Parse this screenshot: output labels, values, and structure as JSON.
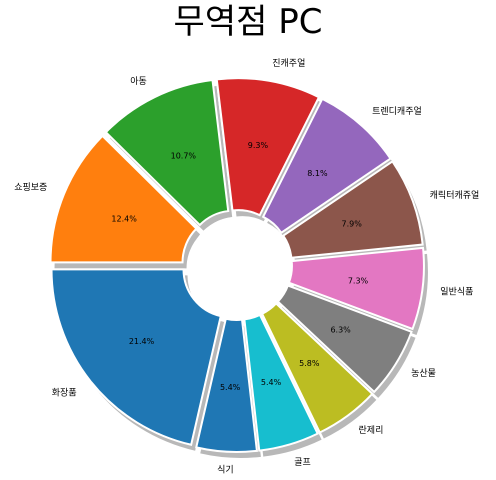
{
  "chart_data": {
    "type": "pie",
    "title": "무역점 PC",
    "donut": true,
    "exploded": true,
    "shadow": true,
    "start_angle_deg": 180,
    "direction": "counterclockwise",
    "slices": [
      {
        "label": "화장품",
        "value": 21.4,
        "pct_label": "21.4%",
        "color": "#1f77b4"
      },
      {
        "label": "식기",
        "value": 5.4,
        "pct_label": "5.4%",
        "color": "#1f77b4"
      },
      {
        "label": "골프",
        "value": 5.4,
        "pct_label": "5.4%",
        "color": "#17becf"
      },
      {
        "label": "란제리",
        "value": 5.8,
        "pct_label": "5.8%",
        "color": "#bcbd22"
      },
      {
        "label": "농산물",
        "value": 6.3,
        "pct_label": "6.3%",
        "color": "#7f7f7f"
      },
      {
        "label": "일반식품",
        "value": 7.3,
        "pct_label": "7.3%",
        "color": "#e377c2"
      },
      {
        "label": "캐릭터캐쥬얼",
        "value": 7.9,
        "pct_label": "7.9%",
        "color": "#8c564b"
      },
      {
        "label": "트렌디캐주얼",
        "value": 8.1,
        "pct_label": "8.1%",
        "color": "#9467bd"
      },
      {
        "label": "진캐주얼",
        "value": 9.3,
        "pct_label": "9.3%",
        "color": "#d62728"
      },
      {
        "label": "아동",
        "value": 10.7,
        "pct_label": "10.7%",
        "color": "#2ca02c"
      },
      {
        "label": "쇼핑보증",
        "value": 12.4,
        "pct_label": "12.4%",
        "color": "#ff7f0e"
      }
    ]
  }
}
